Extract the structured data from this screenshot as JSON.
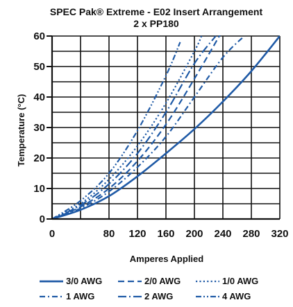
{
  "chart_data": {
    "type": "line",
    "title": "SPEC Pak® Extreme - E02 Insert Arrangement",
    "subtitle": "2 x PP180",
    "xlabel": "Amperes Applied",
    "ylabel": "Temperature (°C)",
    "xlim": [
      0,
      320
    ],
    "ylim": [
      0,
      60
    ],
    "x_ticks": [
      "0",
      "80",
      "120",
      "160",
      "200",
      "240",
      "280",
      "320"
    ],
    "x_tick_values": [
      0,
      80,
      120,
      160,
      200,
      240,
      280,
      320
    ],
    "y_ticks": [
      "0",
      "10",
      "20",
      "30",
      "40",
      "50",
      "60"
    ],
    "y_tick_values": [
      0,
      10,
      20,
      30,
      40,
      50,
      60
    ],
    "grid": true,
    "legend_position": "bottom",
    "line_color": "#1f5aa6",
    "series": [
      {
        "name": "3/0 AWG",
        "style": "solid",
        "points": [
          [
            0,
            0
          ],
          [
            40,
            3
          ],
          [
            80,
            7.5
          ],
          [
            120,
            14
          ],
          [
            160,
            21.5
          ],
          [
            200,
            29.5
          ],
          [
            240,
            38.5
          ],
          [
            280,
            48.5
          ],
          [
            320,
            60
          ]
        ]
      },
      {
        "name": "2/0 AWG",
        "style": "dashed",
        "points": [
          [
            0,
            0
          ],
          [
            40,
            4
          ],
          [
            80,
            10
          ],
          [
            120,
            19
          ],
          [
            160,
            31
          ],
          [
            200,
            46
          ],
          [
            240,
            62
          ]
        ]
      },
      {
        "name": "1/0 AWG",
        "style": "dotted",
        "points": [
          [
            0,
            0
          ],
          [
            40,
            5
          ],
          [
            80,
            13
          ],
          [
            120,
            24
          ],
          [
            160,
            38
          ],
          [
            200,
            55
          ],
          [
            210,
            60
          ]
        ]
      },
      {
        "name": "1 AWG",
        "style": "dashdot",
        "points": [
          [
            0,
            0
          ],
          [
            40,
            3.5
          ],
          [
            80,
            9
          ],
          [
            120,
            17
          ],
          [
            160,
            27
          ],
          [
            200,
            40
          ],
          [
            240,
            53
          ],
          [
            270,
            60
          ]
        ]
      },
      {
        "name": "2 AWG",
        "style": "longdashdot",
        "points": [
          [
            0,
            0
          ],
          [
            40,
            4.5
          ],
          [
            80,
            11.5
          ],
          [
            120,
            21.5
          ],
          [
            160,
            35
          ],
          [
            200,
            51
          ],
          [
            230,
            60
          ]
        ]
      },
      {
        "name": "4 AWG",
        "style": "dashdotdot",
        "points": [
          [
            0,
            0
          ],
          [
            40,
            6
          ],
          [
            80,
            15
          ],
          [
            120,
            29
          ],
          [
            160,
            47
          ],
          [
            180,
            58
          ]
        ]
      }
    ]
  }
}
